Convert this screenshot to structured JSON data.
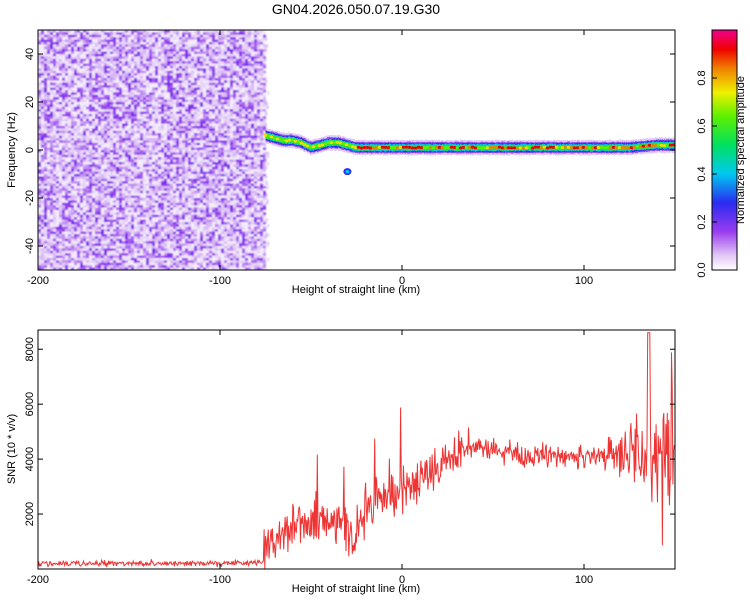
{
  "title": "GN04.2026.050.07.19.G30",
  "chart_data": [
    {
      "type": "heatmap",
      "title": "GN04.2026.050.07.19.G30",
      "xlabel": "Height of straight line (km)",
      "ylabel": "Frequency (Hz)",
      "xlim": [
        -200,
        150
      ],
      "ylim": [
        -50,
        50
      ],
      "x_ticks": [
        -200,
        -100,
        0,
        100
      ],
      "y_ticks": [
        -40,
        -20,
        0,
        20,
        40
      ],
      "colorbar": {
        "label": "Normalized spectral amplitude",
        "range": [
          0.0,
          1.0
        ],
        "ticks": [
          "0.0",
          "0.2",
          "0.4",
          "0.6",
          "0.8"
        ],
        "tick_values": [
          0.0,
          0.2,
          0.4,
          0.6,
          0.8
        ]
      },
      "noise_region": {
        "x_from": -200,
        "x_to": -75
      },
      "signal_track": {
        "x": [
          -75,
          -70,
          -65,
          -60,
          -55,
          -50,
          -45,
          -40,
          -35,
          -30,
          -25,
          -20,
          -10,
          0,
          25,
          50,
          75,
          100,
          125,
          140,
          150
        ],
        "y": [
          6,
          5,
          4,
          4,
          3,
          1,
          2,
          3,
          3,
          2,
          1,
          1,
          1,
          1,
          1,
          1,
          1,
          1,
          1,
          2,
          2
        ]
      }
    },
    {
      "type": "line",
      "xlabel": "Height of straight line (km)",
      "ylabel": "SNR (10 * v/v)",
      "xlim": [
        -200,
        150
      ],
      "ylim": [
        0,
        8700
      ],
      "x_ticks": [
        -200,
        -100,
        0,
        100
      ],
      "y_ticks": [
        2000,
        4000,
        6000,
        8000
      ],
      "color": "#ee3333",
      "series": [
        {
          "name": "SNR",
          "x": [
            -200,
            -150,
            -100,
            -76,
            -74,
            -70,
            -60,
            -50,
            -45,
            -40,
            -35,
            -30,
            -26,
            -24,
            -20,
            -15,
            -10,
            -5,
            0,
            5,
            10,
            15,
            20,
            25,
            30,
            35,
            40,
            45,
            50,
            55,
            60,
            65,
            70,
            75,
            80,
            85,
            90,
            95,
            100,
            105,
            110,
            115,
            120,
            125,
            130,
            135,
            140,
            145,
            150
          ],
          "values": [
            200,
            200,
            200,
            250,
            800,
            1200,
            1500,
            1700,
            1900,
            1700,
            1800,
            1500,
            600,
            1500,
            2200,
            2500,
            2700,
            2700,
            2800,
            3000,
            3300,
            3500,
            3700,
            3900,
            4100,
            4200,
            4300,
            4350,
            4400,
            4300,
            4200,
            4150,
            4100,
            4150,
            4100,
            4100,
            4200,
            4150,
            4050,
            4150,
            4250,
            4200,
            4100,
            4000,
            4050,
            3900,
            4100,
            4000,
            3900
          ]
        }
      ]
    }
  ]
}
